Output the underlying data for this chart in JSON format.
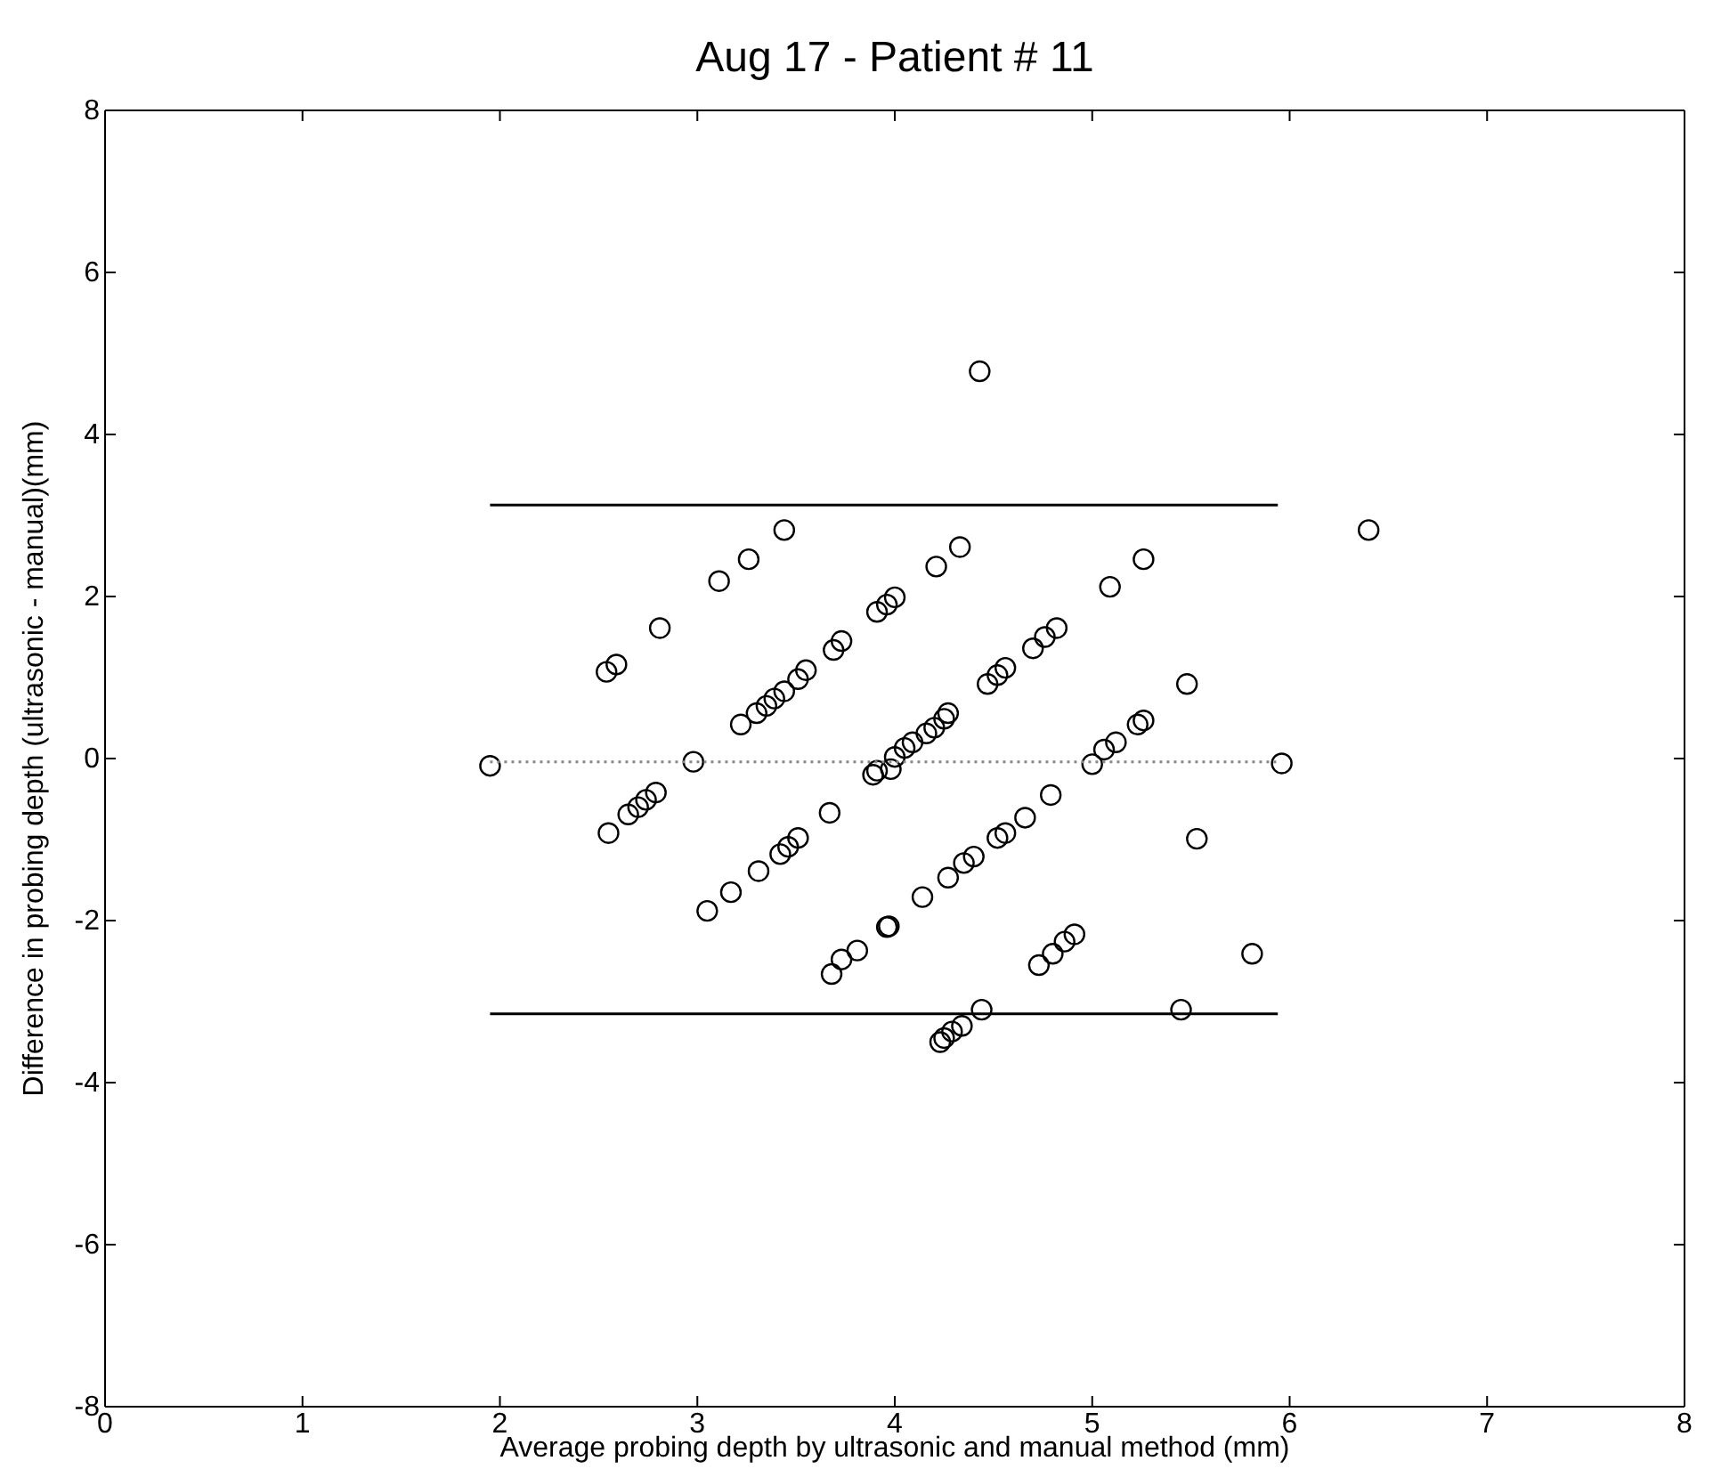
{
  "chart_data": {
    "type": "scatter",
    "title": "Aug 17 - Patient # 11",
    "xlabel": "Average probing depth by ultrasonic and manual method (mm)",
    "ylabel": "Difference in probing depth (ultrasonic - manual)(mm)",
    "xlim": [
      0,
      8
    ],
    "ylim": [
      -8,
      8
    ],
    "xticks": [
      0,
      1,
      2,
      3,
      4,
      5,
      6,
      7,
      8
    ],
    "yticks": [
      -8,
      -6,
      -4,
      -2,
      0,
      2,
      4,
      6,
      8
    ],
    "grid": false,
    "series": [
      {
        "color": "#000000",
        "marker": "circle",
        "x": [
          1.95,
          2.54,
          2.59,
          2.81,
          3.11,
          3.26,
          3.44,
          4.43,
          3.22,
          3.3,
          3.35,
          3.39,
          3.44,
          3.51,
          3.55,
          3.69,
          3.73,
          3.91,
          3.96,
          4.0,
          4.21,
          4.33,
          5.09,
          5.26,
          5.48,
          5.26,
          5.23,
          5.12,
          5.06,
          5.0,
          4.82,
          4.76,
          4.7,
          4.56,
          4.52,
          4.47,
          4.27,
          4.25,
          4.2,
          4.16,
          4.09,
          4.05,
          4.0,
          2.98,
          2.79,
          2.74,
          2.7,
          2.65,
          2.55,
          3.67,
          3.51,
          3.46,
          3.42,
          3.31,
          3.17,
          3.05,
          3.81,
          3.73,
          3.68,
          3.96,
          3.89,
          3.91,
          3.98,
          4.79,
          4.66,
          4.56,
          4.52,
          4.4,
          4.35,
          4.27,
          4.14,
          3.97,
          5.53,
          5.96,
          5.81,
          5.45,
          4.44,
          4.34,
          4.29,
          4.25,
          4.23,
          4.91,
          4.86,
          4.8,
          4.73,
          6.4
        ],
        "values": [
          -0.09,
          1.07,
          1.16,
          1.61,
          2.19,
          2.46,
          2.82,
          4.78,
          0.42,
          0.56,
          0.65,
          0.74,
          0.83,
          0.98,
          1.09,
          1.34,
          1.45,
          1.81,
          1.9,
          1.99,
          2.37,
          2.61,
          2.12,
          2.46,
          0.92,
          0.47,
          0.42,
          0.2,
          0.11,
          -0.07,
          1.61,
          1.5,
          1.36,
          1.12,
          1.03,
          0.92,
          0.56,
          0.49,
          0.38,
          0.31,
          0.2,
          0.13,
          0.02,
          -0.04,
          -0.42,
          -0.51,
          -0.6,
          -0.69,
          -0.92,
          -0.67,
          -0.98,
          -1.09,
          -1.18,
          -1.39,
          -1.65,
          -1.88,
          -2.37,
          -2.48,
          -2.66,
          -2.08,
          -0.2,
          -0.15,
          -0.13,
          -0.45,
          -0.73,
          -0.92,
          -0.98,
          -1.21,
          -1.29,
          -1.47,
          -1.71,
          -2.07,
          -0.99,
          -0.06,
          -2.41,
          -3.1,
          -3.1,
          -3.3,
          -3.37,
          -3.45,
          -3.5,
          -2.17,
          -2.26,
          -2.41,
          -2.55,
          2.82
        ]
      },
      {
        "type": "line",
        "color": "#000000",
        "line_style": "solid",
        "marker": "none",
        "x": [
          1.95,
          5.94
        ],
        "values": [
          3.13,
          3.13
        ]
      },
      {
        "type": "line",
        "color": "#888888",
        "line_style": "dotted",
        "marker": "none",
        "x": [
          1.95,
          5.94
        ],
        "values": [
          -0.04,
          -0.04
        ]
      },
      {
        "type": "line",
        "color": "#000000",
        "line_style": "solid",
        "marker": "none",
        "x": [
          1.95,
          5.94
        ],
        "values": [
          -3.15,
          -3.15
        ]
      }
    ]
  }
}
